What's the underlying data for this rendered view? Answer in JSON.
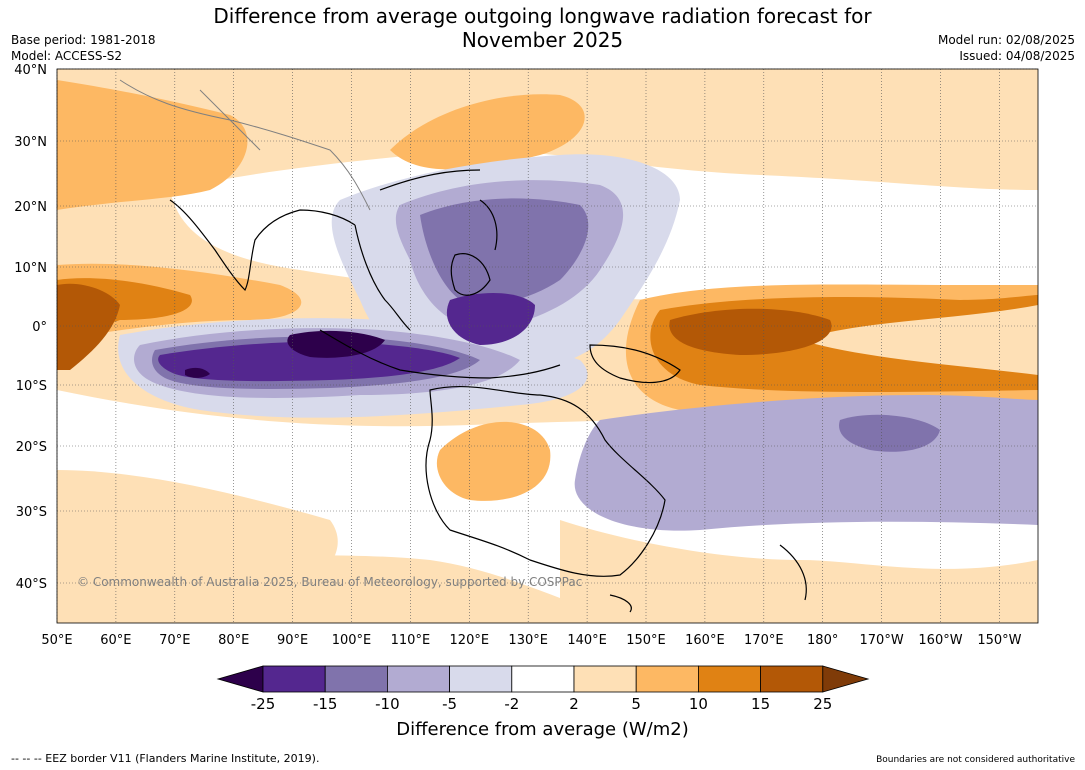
{
  "title_line1": "Difference from average outgoing longwave radiation forecast for",
  "title_line2": "November 2025",
  "base_period": "Base period: 1981-2018",
  "model": "Model: ACCESS-S2",
  "model_run": "Model run: 02/08/2025",
  "issued": "Issued: 04/08/2025",
  "copyright": "© Commonwealth of Australia 2025, Bureau of Meteorology, supported by COSPPac",
  "lat_labels": [
    "40°N",
    "30°N",
    "20°N",
    "10°N",
    "0°",
    "10°S",
    "20°S",
    "30°S",
    "40°S"
  ],
  "lon_labels": [
    "50°E",
    "60°E",
    "70°E",
    "80°E",
    "90°E",
    "100°E",
    "110°E",
    "120°E",
    "130°E",
    "140°E",
    "150°E",
    "160°E",
    "170°E",
    "180°",
    "170°W",
    "160°W",
    "150°W"
  ],
  "colorbar": {
    "ticks": [
      "-25",
      "-15",
      "-10",
      "-5",
      "-2",
      "2",
      "5",
      "10",
      "15",
      "25"
    ],
    "colors": [
      "#2d004b",
      "#54278f",
      "#8073ac",
      "#b2abd2",
      "#d8daeb",
      "#ffffff",
      "#fee0b6",
      "#fdb863",
      "#e08214",
      "#b35806",
      "#7f3b08"
    ],
    "title": "Difference from average (W/m2)"
  },
  "footer_left": "--  --  -- EEZ border V11 (Flanders Marine Institute, 2019).",
  "footer_right": "Boundaries are not considered authoritative"
}
